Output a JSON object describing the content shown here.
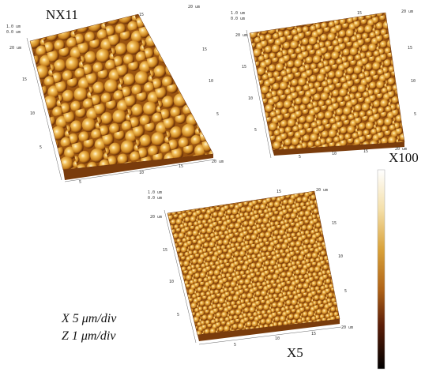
{
  "panels": [
    {
      "label": "NX11",
      "z_labels": [
        "1.0 um",
        "0.0 um"
      ],
      "left_labels": [
        "20 um",
        "15",
        "10",
        "5"
      ],
      "bottom_labels": [
        "5",
        "10",
        "15",
        "20 um"
      ],
      "top_labels": [
        "15",
        "20 um"
      ],
      "right_labels": [
        "15",
        "10",
        "5"
      ]
    },
    {
      "label": "X100",
      "z_labels": [
        "1.0 um",
        "0.0 um"
      ],
      "left_labels": [
        "20 um",
        "15",
        "10",
        "5"
      ],
      "bottom_labels": [
        "5",
        "10",
        "15",
        "20 um"
      ],
      "top_labels": [
        "15",
        "20 um"
      ],
      "right_labels": [
        "15",
        "10",
        "5"
      ]
    },
    {
      "label": "X5",
      "z_labels": [
        "1.0 um",
        "0.0 um"
      ],
      "left_labels": [
        "20 um",
        "15",
        "10",
        "5"
      ],
      "bottom_labels": [
        "5",
        "10",
        "15",
        "20 um"
      ],
      "top_labels": [
        "15",
        "20 um"
      ],
      "right_labels": [
        "15",
        "10",
        "5"
      ]
    }
  ],
  "scale_notes": [
    "X 5 μm/div",
    "Z 1 μm/div"
  ]
}
